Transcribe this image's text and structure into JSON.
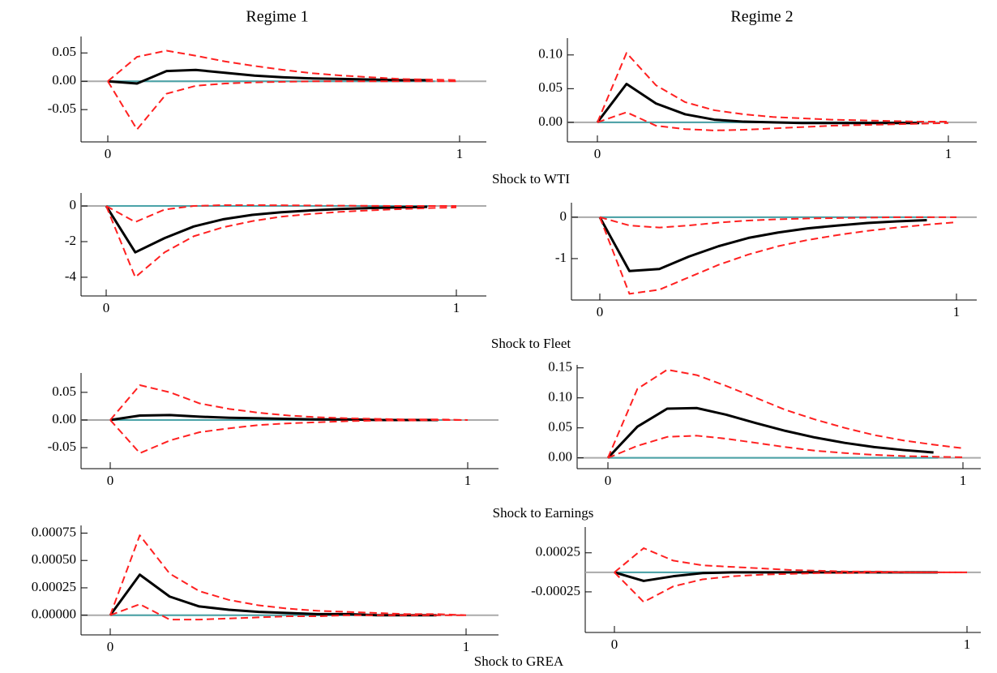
{
  "column_titles": [
    "Regime 1",
    "Regime 2"
  ],
  "row_titles": [
    "Shock to WTI",
    "Shock to Fleet",
    "Shock to Earnings",
    "Shock to GREA"
  ],
  "chart_data": [
    {
      "type": "line",
      "x": [
        0,
        0.083,
        0.167,
        0.25,
        0.333,
        0.417,
        0.5,
        0.583,
        0.667,
        0.75,
        0.833,
        0.917,
        1
      ],
      "xlim": [
        0,
        1
      ],
      "xticks": [
        0,
        1
      ],
      "ylim": [
        -0.107,
        0.079
      ],
      "yticks": [
        -0.05,
        {
          "value": 0,
          "label": "0.00"
        },
        0.05
      ],
      "series": [
        {
          "color": "#000000",
          "line_style": "solid",
          "values": [
            0,
            -0.004,
            0.018,
            0.02,
            0.015,
            0.01,
            0.007,
            0.005,
            0.004,
            0.003,
            0.002,
            0.002,
            null
          ]
        },
        {
          "color": "#ff2020",
          "line_style": "dashed",
          "values": [
            0,
            0.043,
            0.054,
            0.045,
            0.035,
            0.027,
            0.02,
            0.014,
            0.01,
            0.007,
            0.004,
            0.003,
            0.002
          ]
        },
        {
          "color": "#ff2020",
          "line_style": "dashed",
          "values": [
            0,
            -0.085,
            -0.022,
            -0.008,
            -0.004,
            -0.002,
            -0.001,
            0,
            0,
            0,
            0,
            0,
            0
          ]
        }
      ]
    },
    {
      "type": "line",
      "x": [
        0,
        0.083,
        0.167,
        0.25,
        0.333,
        0.417,
        0.5,
        0.583,
        0.667,
        0.75,
        0.833,
        0.917,
        1
      ],
      "xlim": [
        0,
        1
      ],
      "xticks": [
        0,
        1
      ],
      "ylim": [
        -0.029,
        0.125
      ],
      "yticks": [
        {
          "value": 0,
          "label": "0.00"
        },
        0.05,
        {
          "value": 0.1,
          "label": "0.10"
        }
      ],
      "series": [
        {
          "color": "#000000",
          "line_style": "solid",
          "values": [
            0,
            0.057,
            0.028,
            0.012,
            0.004,
            0.001,
            0,
            -0.001,
            -0.001,
            -0.001,
            -0.001,
            -0.001,
            null
          ]
        },
        {
          "color": "#ff2020",
          "line_style": "dashed",
          "values": [
            0,
            0.103,
            0.055,
            0.03,
            0.018,
            0.012,
            0.008,
            0.006,
            0.004,
            0.003,
            0.002,
            0.001,
            0.001
          ]
        },
        {
          "color": "#ff2020",
          "line_style": "dashed",
          "values": [
            0,
            0.015,
            -0.005,
            -0.01,
            -0.012,
            -0.011,
            -0.009,
            -0.007,
            -0.005,
            -0.004,
            -0.003,
            -0.002,
            -0.001
          ]
        }
      ]
    },
    {
      "type": "line",
      "x": [
        0,
        0.083,
        0.167,
        0.25,
        0.333,
        0.417,
        0.5,
        0.583,
        0.667,
        0.75,
        0.833,
        0.917,
        1
      ],
      "xlim": [
        0,
        1
      ],
      "xticks": [
        0,
        1
      ],
      "ylim": [
        -5.05,
        0.73
      ],
      "yticks": [
        -4,
        -2,
        0
      ],
      "series": [
        {
          "color": "#000000",
          "line_style": "solid",
          "values": [
            0,
            -2.6,
            -1.8,
            -1.15,
            -0.75,
            -0.5,
            -0.35,
            -0.25,
            -0.17,
            -0.12,
            -0.08,
            -0.05,
            null
          ]
        },
        {
          "color": "#ff2020",
          "line_style": "dashed",
          "values": [
            0,
            -0.9,
            -0.2,
            0,
            0.05,
            0.05,
            0.04,
            0.03,
            0.02,
            0.01,
            0,
            0,
            0
          ]
        },
        {
          "color": "#ff2020",
          "line_style": "dashed",
          "values": [
            0,
            -4.0,
            -2.6,
            -1.7,
            -1.2,
            -0.85,
            -0.6,
            -0.45,
            -0.33,
            -0.25,
            -0.18,
            -0.12,
            -0.08
          ]
        }
      ]
    },
    {
      "type": "line",
      "x": [
        0,
        0.083,
        0.167,
        0.25,
        0.333,
        0.417,
        0.5,
        0.583,
        0.667,
        0.75,
        0.833,
        0.917,
        1
      ],
      "xlim": [
        0,
        1
      ],
      "xticks": [
        0,
        1
      ],
      "ylim": [
        -2.0,
        0.35
      ],
      "yticks": [
        -1,
        0
      ],
      "series": [
        {
          "color": "#000000",
          "line_style": "solid",
          "values": [
            0,
            -1.3,
            -1.25,
            -0.95,
            -0.7,
            -0.5,
            -0.37,
            -0.27,
            -0.2,
            -0.14,
            -0.1,
            -0.07,
            null
          ]
        },
        {
          "color": "#ff2020",
          "line_style": "dashed",
          "values": [
            0,
            -0.2,
            -0.25,
            -0.2,
            -0.13,
            -0.08,
            -0.05,
            -0.03,
            -0.02,
            -0.01,
            0,
            0,
            0
          ]
        },
        {
          "color": "#ff2020",
          "line_style": "dashed",
          "values": [
            0,
            -1.85,
            -1.75,
            -1.45,
            -1.15,
            -0.9,
            -0.7,
            -0.55,
            -0.43,
            -0.33,
            -0.25,
            -0.18,
            -0.12
          ]
        }
      ]
    },
    {
      "type": "line",
      "x": [
        0,
        0.083,
        0.167,
        0.25,
        0.333,
        0.417,
        0.5,
        0.583,
        0.667,
        0.75,
        0.833,
        0.917,
        1
      ],
      "xlim": [
        0,
        1
      ],
      "xticks": [
        0,
        1
      ],
      "ylim": [
        -0.088,
        0.085
      ],
      "yticks": [
        -0.05,
        {
          "value": 0,
          "label": "0.00"
        },
        0.05
      ],
      "series": [
        {
          "color": "#000000",
          "line_style": "solid",
          "values": [
            0,
            0.008,
            0.009,
            0.006,
            0.004,
            0.003,
            0.002,
            0.001,
            0.001,
            0,
            0,
            0,
            null
          ]
        },
        {
          "color": "#ff2020",
          "line_style": "dashed",
          "values": [
            0,
            0.063,
            0.05,
            0.03,
            0.02,
            0.013,
            0.008,
            0.005,
            0.003,
            0.002,
            0.001,
            0.001,
            0
          ]
        },
        {
          "color": "#ff2020",
          "line_style": "dashed",
          "values": [
            0,
            -0.06,
            -0.037,
            -0.022,
            -0.015,
            -0.009,
            -0.006,
            -0.004,
            -0.002,
            -0.001,
            -0.001,
            0,
            0
          ]
        }
      ]
    },
    {
      "type": "line",
      "x": [
        0,
        0.083,
        0.167,
        0.25,
        0.333,
        0.417,
        0.5,
        0.583,
        0.667,
        0.75,
        0.833,
        0.917,
        1
      ],
      "xlim": [
        0,
        1
      ],
      "xticks": [
        0,
        1
      ],
      "ylim": [
        -0.018,
        0.155
      ],
      "yticks": [
        {
          "value": 0,
          "label": "0.00"
        },
        0.05,
        {
          "value": 0.1,
          "label": "0.10"
        },
        0.15
      ],
      "series": [
        {
          "color": "#000000",
          "line_style": "solid",
          "values": [
            0,
            0.052,
            0.082,
            0.083,
            0.072,
            0.058,
            0.045,
            0.034,
            0.025,
            0.018,
            0.013,
            0.009,
            null
          ]
        },
        {
          "color": "#ff2020",
          "line_style": "dashed",
          "values": [
            0,
            0.115,
            0.147,
            0.138,
            0.12,
            0.1,
            0.08,
            0.064,
            0.05,
            0.038,
            0.029,
            0.022,
            0.016
          ]
        },
        {
          "color": "#ff2020",
          "line_style": "dashed",
          "values": [
            0,
            0.02,
            0.035,
            0.037,
            0.032,
            0.025,
            0.018,
            0.012,
            0.008,
            0.005,
            0.003,
            0.002,
            0.001
          ]
        }
      ]
    },
    {
      "type": "line",
      "x": [
        0,
        0.083,
        0.167,
        0.25,
        0.333,
        0.417,
        0.5,
        0.583,
        0.667,
        0.75,
        0.833,
        0.917,
        1
      ],
      "xlim": [
        0,
        1
      ],
      "xticks": [
        0,
        1
      ],
      "ylim": [
        -0.00018,
        0.00082
      ],
      "yticks": [
        {
          "value": 0,
          "label": "0.00000"
        },
        0.00025,
        {
          "value": 0.0005,
          "label": "0.00050"
        },
        0.00075
      ],
      "series": [
        {
          "color": "#000000",
          "line_style": "solid",
          "values": [
            0,
            0.00037,
            0.00017,
            8e-05,
            5e-05,
            3e-05,
            2e-05,
            1e-05,
            1e-05,
            0,
            0,
            0,
            null
          ]
        },
        {
          "color": "#ff2020",
          "line_style": "dashed",
          "values": [
            0,
            0.00073,
            0.00038,
            0.00022,
            0.00014,
            9e-05,
            6e-05,
            4e-05,
            3e-05,
            2e-05,
            1e-05,
            1e-05,
            0
          ]
        },
        {
          "color": "#ff2020",
          "line_style": "dashed",
          "values": [
            0,
            0.0001,
            -4e-05,
            -4e-05,
            -3e-05,
            -2e-05,
            -1e-05,
            -1e-05,
            0,
            0,
            0,
            0,
            0
          ]
        }
      ]
    },
    {
      "type": "line",
      "x": [
        0,
        0.083,
        0.167,
        0.25,
        0.333,
        0.417,
        0.5,
        0.583,
        0.667,
        0.75,
        0.833,
        0.917,
        1
      ],
      "xlim": [
        0,
        1
      ],
      "xticks": [
        0,
        1
      ],
      "ylim": [
        -0.00077,
        0.00058
      ],
      "yticks": [
        -0.00025,
        0.00025
      ],
      "series": [
        {
          "color": "#000000",
          "line_style": "solid",
          "values": [
            0,
            -0.00011,
            -5e-05,
            -1e-05,
            0,
            0,
            0,
            0,
            0,
            0,
            0,
            0,
            null
          ]
        },
        {
          "color": "#ff2020",
          "line_style": "dashed",
          "values": [
            0,
            0.00031,
            0.00015,
            9e-05,
            7e-05,
            5e-05,
            3e-05,
            2e-05,
            1e-05,
            1e-05,
            0,
            0,
            0
          ]
        },
        {
          "color": "#ff2020",
          "line_style": "dashed",
          "values": [
            0,
            -0.00038,
            -0.00018,
            -9e-05,
            -5e-05,
            -3e-05,
            -2e-05,
            -1e-05,
            -1e-05,
            0,
            0,
            0,
            0
          ]
        }
      ]
    }
  ]
}
